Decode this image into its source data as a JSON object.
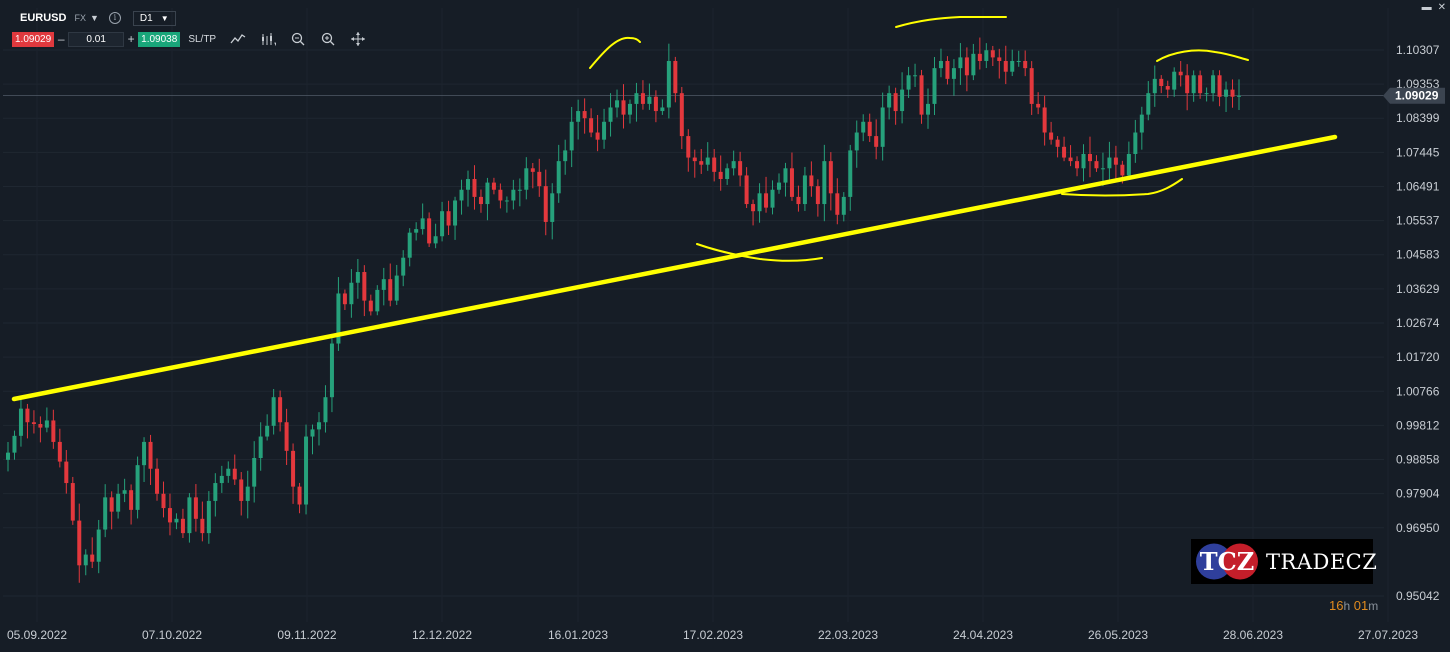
{
  "toolbar": {
    "symbol": "EURUSD",
    "market": "FX",
    "info_glyph": "i",
    "timeframe": "D1",
    "sell_price": "1.09029",
    "quantity": "0.01",
    "buy_price": "1.09038",
    "sltp_label": "SL/TP",
    "minus": "–",
    "plus": "+"
  },
  "logo": {
    "mark_text": "TCZ",
    "text": "TRADECZ"
  },
  "countdown": {
    "hours": "16",
    "h": "h",
    "minutes": "01",
    "m": "m"
  },
  "chart_data": {
    "type": "candlestick",
    "symbol": "EURUSD",
    "timeframe": "D1",
    "y_ticks": [
      "1.10307",
      "1.09353",
      "1.08399",
      "1.07445",
      "1.06491",
      "1.05537",
      "1.04583",
      "1.03629",
      "1.02674",
      "1.01720",
      "1.00766",
      "0.99812",
      "0.98858",
      "0.97904",
      "0.96950",
      "0.95042"
    ],
    "ylim": [
      0.9486,
      1.1126
    ],
    "x_ticks": [
      "05.09.2022",
      "07.10.2022",
      "09.11.2022",
      "12.12.2022",
      "16.01.2023",
      "17.02.2023",
      "22.03.2023",
      "24.04.2023",
      "26.05.2023",
      "28.06.2023",
      "27.07.2023"
    ],
    "current_price": "1.09029",
    "colors": {
      "up": "#26a17b",
      "down": "#e3383d",
      "background": "#161d26",
      "annotation": "#ffff00"
    },
    "closes": [
      0.9905,
      0.9952,
      1.0028,
      0.999,
      0.9985,
      0.9975,
      0.9995,
      0.9935,
      0.988,
      0.982,
      0.9715,
      0.959,
      0.962,
      0.96,
      0.969,
      0.978,
      0.974,
      0.979,
      0.98,
      0.9745,
      0.987,
      0.9935,
      0.986,
      0.979,
      0.975,
      0.971,
      0.972,
      0.968,
      0.978,
      0.972,
      0.968,
      0.977,
      0.982,
      0.984,
      0.986,
      0.983,
      0.977,
      0.981,
      0.989,
      0.995,
      0.998,
      1.006,
      0.999,
      0.991,
      0.981,
      0.976,
      0.995,
      0.997,
      0.999,
      1.006,
      1.021,
      1.035,
      1.032,
      1.038,
      1.041,
      1.033,
      1.03,
      1.036,
      1.039,
      1.033,
      1.04,
      1.045,
      1.052,
      1.053,
      1.056,
      1.049,
      1.051,
      1.058,
      1.054,
      1.061,
      1.064,
      1.067,
      1.062,
      1.06,
      1.066,
      1.064,
      1.061,
      1.061,
      1.064,
      1.064,
      1.07,
      1.069,
      1.065,
      1.055,
      1.063,
      1.072,
      1.075,
      1.083,
      1.086,
      1.084,
      1.08,
      1.078,
      1.083,
      1.087,
      1.089,
      1.085,
      1.088,
      1.091,
      1.088,
      1.09,
      1.086,
      1.087,
      1.1,
      1.091,
      1.079,
      1.073,
      1.072,
      1.071,
      1.073,
      1.069,
      1.067,
      1.07,
      1.072,
      1.068,
      1.06,
      1.058,
      1.063,
      1.059,
      1.064,
      1.066,
      1.07,
      1.062,
      1.06,
      1.068,
      1.065,
      1.06,
      1.072,
      1.063,
      1.057,
      1.062,
      1.075,
      1.08,
      1.083,
      1.079,
      1.076,
      1.087,
      1.091,
      1.086,
      1.092,
      1.096,
      1.096,
      1.085,
      1.088,
      1.098,
      1.1,
      1.095,
      1.098,
      1.101,
      1.096,
      1.102,
      1.1,
      1.103,
      1.101,
      1.1,
      1.097,
      1.1,
      1.1,
      1.098,
      1.088,
      1.087,
      1.08,
      1.078,
      1.076,
      1.073,
      1.072,
      1.07,
      1.074,
      1.072,
      1.07,
      1.07,
      1.073,
      1.071,
      1.068,
      1.074,
      1.08,
      1.085,
      1.091,
      1.095,
      1.093,
      1.092,
      1.097,
      1.096,
      1.091,
      1.096,
      1.091,
      1.091,
      1.096,
      1.09,
      1.092,
      1.09,
      1.0903
    ],
    "annotations": [
      {
        "type": "trendline",
        "points": [
          [
            "05.09.2022",
            1.0104
          ],
          [
            "27.07.2023",
            1.0778
          ]
        ]
      }
    ]
  }
}
